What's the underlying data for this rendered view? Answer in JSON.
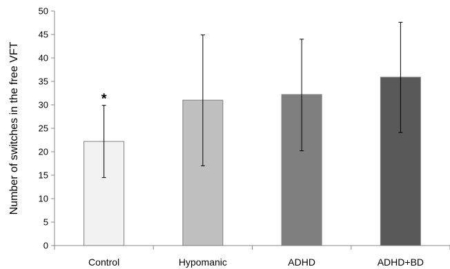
{
  "chart_data": {
    "type": "bar",
    "categories": [
      "Control",
      "Hypomanic",
      "ADHD",
      "ADHD+BD"
    ],
    "values": [
      22.2,
      31.0,
      32.2,
      35.9
    ],
    "error_low": [
      14.5,
      17.0,
      20.2,
      24.1
    ],
    "error_high": [
      29.9,
      44.9,
      44.0,
      47.6
    ],
    "bar_colors": [
      "#f2f2f2",
      "#bfbfbf",
      "#7f7f7f",
      "#595959"
    ],
    "ylabel": "Number of switches in the free VFT",
    "xlabel": "",
    "ylim": [
      0,
      50
    ],
    "yticks": [
      0,
      5,
      10,
      15,
      20,
      25,
      30,
      35,
      40,
      45,
      50
    ],
    "grid": false,
    "annotations": [
      {
        "category": "Control",
        "text": "*"
      }
    ]
  }
}
